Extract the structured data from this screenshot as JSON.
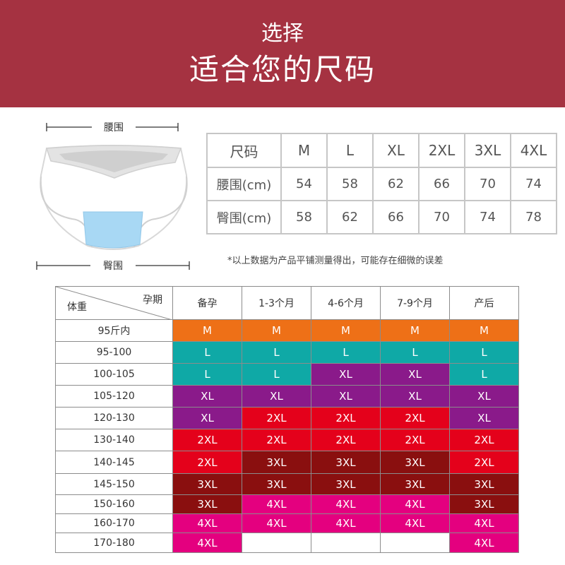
{
  "header": {
    "subtitle": "选择",
    "title": "适合您的尺码",
    "bg_color": "#a53241"
  },
  "diagram": {
    "waist_label": "腰围",
    "hip_label": "臀围"
  },
  "size_chart": {
    "header_label": "尺码",
    "sizes": [
      "M",
      "L",
      "XL",
      "2XL",
      "3XL",
      "4XL"
    ],
    "rows": [
      {
        "label": "腰围(cm)",
        "values": [
          "54",
          "58",
          "62",
          "66",
          "70",
          "74"
        ]
      },
      {
        "label": "臀围(cm)",
        "values": [
          "58",
          "62",
          "66",
          "70",
          "74",
          "78"
        ]
      }
    ]
  },
  "note": "*以上数据为产品平铺测量得出，可能存在细微的误差",
  "recommend": {
    "corner_top": "孕期",
    "corner_bottom": "体重",
    "columns": [
      "备孕",
      "1-3个月",
      "4-6个月",
      "7-9个月",
      "产后"
    ],
    "colors": {
      "M": "#ee7017",
      "L": "#0fa9a6",
      "XL": "#8a1a8a",
      "2XL": "#e4011b",
      "3XL": "#8a0f0f",
      "4XL": "#e4007f"
    },
    "rows": [
      {
        "weight": "95斤内",
        "sizes": [
          "M",
          "M",
          "M",
          "M",
          "M"
        ]
      },
      {
        "weight": "95-100",
        "sizes": [
          "L",
          "L",
          "L",
          "L",
          "L"
        ]
      },
      {
        "weight": "100-105",
        "sizes": [
          "L",
          "L",
          "XL",
          "XL",
          "L"
        ]
      },
      {
        "weight": "105-120",
        "sizes": [
          "XL",
          "XL",
          "XL",
          "XL",
          "XL"
        ]
      },
      {
        "weight": "120-130",
        "sizes": [
          "XL",
          "2XL",
          "2XL",
          "2XL",
          "XL"
        ]
      },
      {
        "weight": "130-140",
        "sizes": [
          "2XL",
          "2XL",
          "2XL",
          "2XL",
          "2XL"
        ]
      },
      {
        "weight": "140-145",
        "sizes": [
          "2XL",
          "3XL",
          "3XL",
          "3XL",
          "2XL"
        ]
      },
      {
        "weight": "145-150",
        "sizes": [
          "3XL",
          "3XL",
          "3XL",
          "3XL",
          "3XL"
        ]
      },
      {
        "weight": "150-160",
        "sizes": [
          "3XL",
          "4XL",
          "4XL",
          "4XL",
          "3XL"
        ]
      },
      {
        "weight": "160-170",
        "sizes": [
          "4XL",
          "4XL",
          "4XL",
          "4XL",
          "4XL"
        ]
      },
      {
        "weight": "170-180",
        "sizes": [
          "4XL",
          "",
          "",
          "",
          "4XL"
        ]
      }
    ]
  }
}
